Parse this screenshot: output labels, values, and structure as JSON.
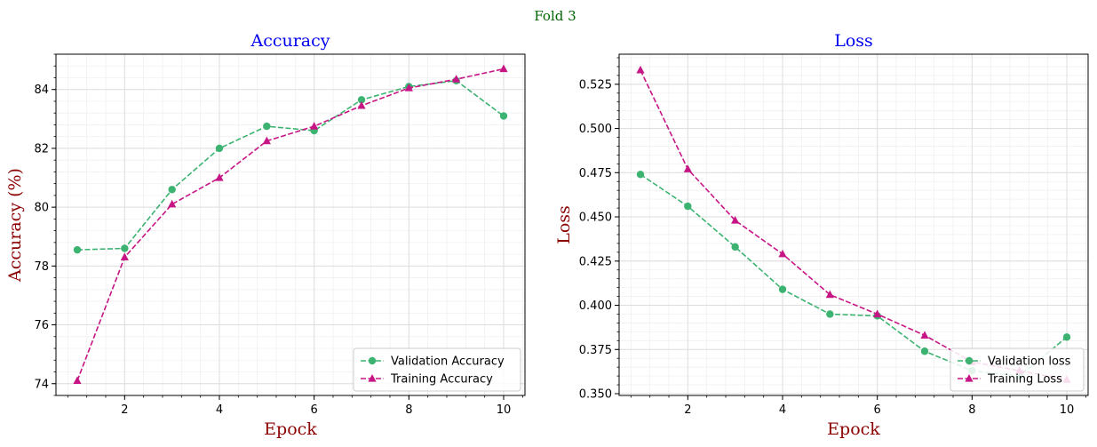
{
  "suptitle": "Fold 3",
  "colors": {
    "validation": "#3cb371",
    "training": "#c71585",
    "title": "#0000ee",
    "axis_label": "#8b0000",
    "suptitle": "#006400",
    "grid_major": "#dddddd",
    "grid_minor": "#f0f0f0"
  },
  "chart_data": [
    {
      "type": "line",
      "title": "Accuracy",
      "xlabel": "Epock",
      "ylabel": "Accuracy (%)",
      "x": [
        1,
        2,
        3,
        4,
        5,
        6,
        7,
        8,
        9,
        10
      ],
      "xlim": [
        0.55,
        10.45
      ],
      "ylim": [
        73.6,
        85.2
      ],
      "xticks": [
        2,
        4,
        6,
        8,
        10
      ],
      "yticks": [
        74,
        76,
        78,
        80,
        82,
        84
      ],
      "ytick_decimals": 0,
      "grid": true,
      "legend_position": "lower-right",
      "series": [
        {
          "name": "Validation Accuracy",
          "marker": "circle",
          "color_key": "validation",
          "values": [
            78.55,
            78.6,
            80.6,
            82.0,
            82.75,
            82.6,
            83.65,
            84.1,
            84.3,
            83.1
          ]
        },
        {
          "name": "Training Accuracy",
          "marker": "triangle",
          "color_key": "training",
          "values": [
            74.1,
            78.3,
            80.1,
            81.0,
            82.25,
            82.75,
            83.45,
            84.05,
            84.35,
            84.7
          ]
        }
      ]
    },
    {
      "type": "line",
      "title": "Loss",
      "xlabel": "Epock",
      "ylabel": "Loss",
      "x": [
        1,
        2,
        3,
        4,
        5,
        6,
        7,
        8,
        9,
        10
      ],
      "xlim": [
        0.55,
        10.45
      ],
      "ylim": [
        0.349,
        0.542
      ],
      "xticks": [
        2,
        4,
        6,
        8,
        10
      ],
      "yticks": [
        0.35,
        0.375,
        0.4,
        0.425,
        0.45,
        0.475,
        0.5,
        0.525
      ],
      "ytick_decimals": 3,
      "grid": true,
      "legend_position": "lower-right",
      "series": [
        {
          "name": "Validation loss",
          "marker": "circle",
          "color_key": "validation",
          "values": [
            0.474,
            0.456,
            0.433,
            0.409,
            0.395,
            0.394,
            0.374,
            0.363,
            0.36,
            0.382
          ]
        },
        {
          "name": "Training Loss",
          "marker": "triangle",
          "color_key": "training",
          "values": [
            0.533,
            0.477,
            0.448,
            0.429,
            0.406,
            0.395,
            0.383,
            0.368,
            0.363,
            0.358
          ]
        }
      ]
    }
  ]
}
